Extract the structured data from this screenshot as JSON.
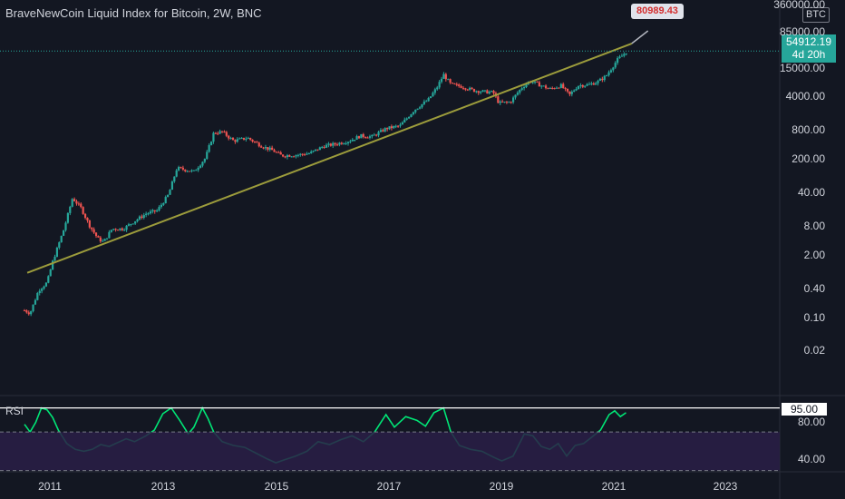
{
  "header": {
    "title": "BraveNewCoin Liquid Index for Bitcoin, 2W, BNC",
    "currency": "BTC"
  },
  "price_tag": {
    "value": "54912.19",
    "countdown": "4d 20h",
    "color": "#26a69a"
  },
  "callout": {
    "label": "80989.43",
    "color": "#d32f2f"
  },
  "rsi_panel": {
    "label": "RSI",
    "level_tag": "95.00",
    "ticks": [
      "80.00",
      "40.00"
    ]
  },
  "colors": {
    "background": "#131722",
    "up": "#26a69a",
    "down": "#ef5350",
    "trendline": "#9c9c3c",
    "rsi": "#00e676",
    "rsi_band": "#2a1f47"
  },
  "chart_data": [
    {
      "type": "candlestick",
      "title": "BraveNewCoin Liquid Index for Bitcoin, 2W, BNC",
      "y_scale": "log",
      "y_ticks": [
        "360000.00",
        "85000.00",
        "15000.00",
        "4000.00",
        "800.00",
        "200.00",
        "40.00",
        "8.00",
        "2.00",
        "0.40",
        "0.10",
        "0.02"
      ],
      "x_ticks": [
        "2011",
        "2013",
        "2015",
        "2017",
        "2019",
        "2021",
        "2023"
      ],
      "trendline": {
        "from": [
          2010.6,
          0.5
        ],
        "to": [
          2021.3,
          80989.43
        ]
      },
      "price_points": [
        [
          2010.55,
          0.07
        ],
        [
          2010.65,
          0.06
        ],
        [
          2010.8,
          0.2
        ],
        [
          2010.95,
          0.3
        ],
        [
          2011.05,
          0.9
        ],
        [
          2011.25,
          5
        ],
        [
          2011.4,
          25
        ],
        [
          2011.55,
          15
        ],
        [
          2011.7,
          6
        ],
        [
          2011.85,
          3
        ],
        [
          2011.95,
          2.5
        ],
        [
          2012.1,
          5
        ],
        [
          2012.3,
          5
        ],
        [
          2012.5,
          7.5
        ],
        [
          2012.7,
          11
        ],
        [
          2012.9,
          13
        ],
        [
          2013.1,
          30
        ],
        [
          2013.25,
          120
        ],
        [
          2013.4,
          110
        ],
        [
          2013.55,
          100
        ],
        [
          2013.75,
          200
        ],
        [
          2013.9,
          750
        ],
        [
          2014.05,
          800
        ],
        [
          2014.25,
          500
        ],
        [
          2014.5,
          580
        ],
        [
          2014.75,
          380
        ],
        [
          2014.95,
          300
        ],
        [
          2015.1,
          230
        ],
        [
          2015.4,
          240
        ],
        [
          2015.6,
          260
        ],
        [
          2015.85,
          380
        ],
        [
          2016.05,
          420
        ],
        [
          2016.3,
          500
        ],
        [
          2016.5,
          650
        ],
        [
          2016.7,
          620
        ],
        [
          2016.95,
          950
        ],
        [
          2017.2,
          1100
        ],
        [
          2017.45,
          2500
        ],
        [
          2017.7,
          4300
        ],
        [
          2017.85,
          8000
        ],
        [
          2017.97,
          16000
        ],
        [
          2018.1,
          9500
        ],
        [
          2018.3,
          8500
        ],
        [
          2018.5,
          7000
        ],
        [
          2018.7,
          6500
        ],
        [
          2018.85,
          6300
        ],
        [
          2018.95,
          3600
        ],
        [
          2019.15,
          3800
        ],
        [
          2019.35,
          8000
        ],
        [
          2019.5,
          11500
        ],
        [
          2019.7,
          9000
        ],
        [
          2019.85,
          7500
        ],
        [
          2020.05,
          9000
        ],
        [
          2020.2,
          5500
        ],
        [
          2020.35,
          9000
        ],
        [
          2020.55,
          9500
        ],
        [
          2020.7,
          11000
        ],
        [
          2020.85,
          15000
        ],
        [
          2020.97,
          25000
        ],
        [
          2021.05,
          35000
        ],
        [
          2021.15,
          45000
        ],
        [
          2021.22,
          54912.19
        ]
      ]
    },
    {
      "type": "line",
      "title": "RSI",
      "y_ticks": [
        95,
        80,
        40
      ],
      "levels": [
        70,
        30
      ],
      "points": [
        [
          2010.55,
          78
        ],
        [
          2010.65,
          70
        ],
        [
          2010.75,
          80
        ],
        [
          2010.85,
          95
        ],
        [
          2010.95,
          93
        ],
        [
          2011.05,
          85
        ],
        [
          2011.15,
          72
        ],
        [
          2011.3,
          58
        ],
        [
          2011.45,
          52
        ],
        [
          2011.6,
          50
        ],
        [
          2011.75,
          52
        ],
        [
          2011.9,
          57
        ],
        [
          2012.05,
          55
        ],
        [
          2012.2,
          59
        ],
        [
          2012.35,
          63
        ],
        [
          2012.5,
          60
        ],
        [
          2012.7,
          66
        ],
        [
          2012.85,
          72
        ],
        [
          2013.0,
          89
        ],
        [
          2013.15,
          95
        ],
        [
          2013.3,
          82
        ],
        [
          2013.45,
          68
        ],
        [
          2013.55,
          75
        ],
        [
          2013.7,
          95
        ],
        [
          2013.8,
          84
        ],
        [
          2013.9,
          70
        ],
        [
          2014.05,
          60
        ],
        [
          2014.25,
          56
        ],
        [
          2014.45,
          54
        ],
        [
          2014.65,
          48
        ],
        [
          2014.85,
          42
        ],
        [
          2015.0,
          38
        ],
        [
          2015.15,
          41
        ],
        [
          2015.35,
          45
        ],
        [
          2015.55,
          50
        ],
        [
          2015.75,
          60
        ],
        [
          2015.95,
          57
        ],
        [
          2016.15,
          62
        ],
        [
          2016.35,
          66
        ],
        [
          2016.55,
          60
        ],
        [
          2016.75,
          70
        ],
        [
          2016.95,
          88
        ],
        [
          2017.1,
          75
        ],
        [
          2017.3,
          86
        ],
        [
          2017.5,
          82
        ],
        [
          2017.65,
          76
        ],
        [
          2017.8,
          90
        ],
        [
          2017.97,
          95
        ],
        [
          2018.1,
          70
        ],
        [
          2018.25,
          56
        ],
        [
          2018.45,
          52
        ],
        [
          2018.65,
          50
        ],
        [
          2018.85,
          44
        ],
        [
          2019.0,
          40
        ],
        [
          2019.2,
          45
        ],
        [
          2019.4,
          68
        ],
        [
          2019.55,
          66
        ],
        [
          2019.7,
          55
        ],
        [
          2019.85,
          52
        ],
        [
          2020.0,
          58
        ],
        [
          2020.15,
          45
        ],
        [
          2020.3,
          56
        ],
        [
          2020.45,
          58
        ],
        [
          2020.6,
          65
        ],
        [
          2020.75,
          72
        ],
        [
          2020.9,
          88
        ],
        [
          2021.0,
          92
        ],
        [
          2021.1,
          86
        ],
        [
          2021.2,
          90
        ]
      ]
    }
  ]
}
